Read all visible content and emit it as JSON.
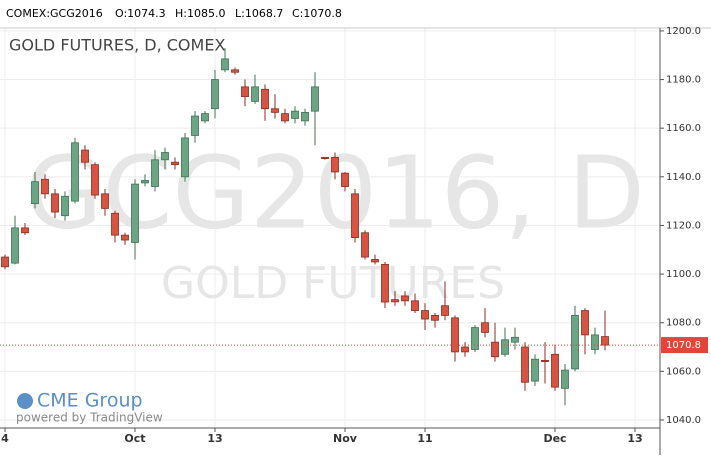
{
  "header": {
    "symbol": "COMEX:GCG2016",
    "open": "O:1074.3",
    "high": "H:1085.0",
    "low": "L:1068.7",
    "close": "C:1070.8"
  },
  "watermark": {
    "line1": "GCG2016, D",
    "line2": "GOLD FUTURES"
  },
  "branding": {
    "logo": "CME Group",
    "powered": "powered by TradingView"
  },
  "chart_data": {
    "type": "candlestick",
    "title": "GOLD FUTURES, D, COMEX",
    "up_color": "#6ba583",
    "down_color": "#d75442",
    "last_color": "#e0463a",
    "grid": true,
    "open": [
      1107,
      1104.5,
      1119,
      1129,
      1139,
      1133,
      1124,
      1130,
      1151,
      1145,
      1133,
      1125,
      1116,
      1113,
      1137.5,
      1136,
      1147,
      1146,
      1140,
      1157,
      1163,
      1168,
      1184,
      1184,
      1177,
      1171,
      1176,
      1168,
      1166,
      1164,
      1163,
      1167,
      1148,
      1148,
      1141.5,
      1133,
      1117,
      1106,
      1104,
      1089.5,
      1091,
      1089,
      1085,
      1083,
      1087,
      1082,
      1070,
      1069,
      1080,
      1072,
      1067,
      1072,
      1070,
      1056,
      1064.5,
      1067,
      1053,
      1061,
      1085,
      1069,
      1074.3
    ],
    "high": [
      1108,
      1124,
      1121,
      1142,
      1141,
      1135,
      1134,
      1156,
      1153,
      1146,
      1135,
      1126,
      1117,
      1139,
      1141,
      1151,
      1152,
      1148,
      1158,
      1167,
      1167,
      1184,
      1193,
      1185,
      1180,
      1182,
      1178,
      1174,
      1168,
      1169,
      1168,
      1183,
      1148,
      1150,
      1142,
      1135,
      1118,
      1108,
      1105,
      1093,
      1093,
      1092,
      1088,
      1084,
      1097,
      1083,
      1072,
      1079,
      1086,
      1080,
      1078,
      1078,
      1072,
      1067,
      1072,
      1071,
      1063,
      1087,
      1086,
      1078,
      1085
    ],
    "low": [
      1102,
      1104,
      1116,
      1127,
      1131,
      1123,
      1122,
      1129,
      1143,
      1131,
      1124,
      1113,
      1112,
      1106,
      1136,
      1134,
      1143,
      1143,
      1138,
      1154,
      1162,
      1164,
      1183,
      1182,
      1169,
      1170,
      1163,
      1164,
      1162,
      1162,
      1161,
      1153,
      1147,
      1139,
      1134,
      1113,
      1106,
      1104,
      1086,
      1087,
      1087,
      1084,
      1077,
      1078,
      1081,
      1064,
      1066,
      1068,
      1074,
      1064,
      1066,
      1069,
      1052,
      1054,
      1055,
      1052,
      1046,
      1060,
      1067,
      1067,
      1068.7
    ],
    "close": [
      1103,
      1119,
      1117,
      1138,
      1133,
      1125.5,
      1132,
      1154,
      1146,
      1132.5,
      1127,
      1116,
      1114,
      1137,
      1138.5,
      1147,
      1150,
      1145,
      1156,
      1165,
      1166,
      1180,
      1188.5,
      1183,
      1173,
      1177,
      1168,
      1166.5,
      1163,
      1167,
      1166.5,
      1177,
      1147.5,
      1142,
      1136,
      1115,
      1107,
      1105,
      1088.5,
      1088.6,
      1089,
      1085,
      1081.5,
      1081,
      1083,
      1068,
      1068,
      1078,
      1076,
      1066,
      1073,
      1074,
      1055.5,
      1065,
      1064,
      1053.5,
      1060.5,
      1083,
      1075,
      1075,
      1070.8
    ],
    "ylim": [
      1036.7,
      1201.2
    ],
    "yticks": [
      {
        "value": 1040,
        "label": "1040.0"
      },
      {
        "value": 1060,
        "label": "1060.0"
      },
      {
        "value": 1080,
        "label": "1080.0"
      },
      {
        "value": 1100,
        "label": "1100.0"
      },
      {
        "value": 1120,
        "label": "1120.0"
      },
      {
        "value": 1140,
        "label": "1140.0"
      },
      {
        "value": 1160,
        "label": "1160.0"
      },
      {
        "value": 1180,
        "label": "1180.0"
      },
      {
        "value": 1200,
        "label": "1200.0"
      }
    ],
    "xlim": [
      -0.5,
      65.5
    ],
    "xticks": [
      {
        "value": 0,
        "label": "4"
      },
      {
        "value": 13,
        "label": "Oct"
      },
      {
        "value": 21,
        "label": "13"
      },
      {
        "value": 34,
        "label": "Nov"
      },
      {
        "value": 42,
        "label": "11"
      },
      {
        "value": 55,
        "label": "Dec"
      },
      {
        "value": 63,
        "label": "13"
      }
    ]
  }
}
